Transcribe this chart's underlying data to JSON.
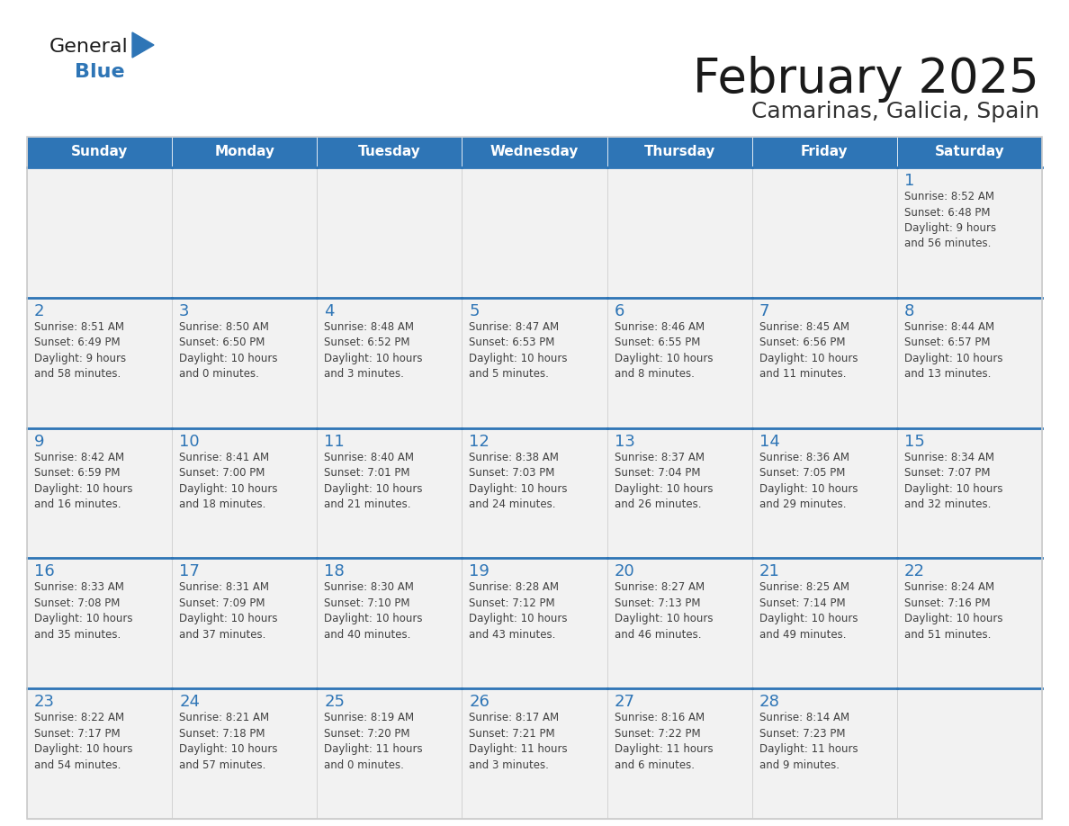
{
  "title": "February 2025",
  "subtitle": "Camarinas, Galicia, Spain",
  "days_of_week": [
    "Sunday",
    "Monday",
    "Tuesday",
    "Wednesday",
    "Thursday",
    "Friday",
    "Saturday"
  ],
  "header_bg": "#2E75B6",
  "header_text": "#FFFFFF",
  "cell_bg": "#F2F2F2",
  "cell_border_color": "#CCCCCC",
  "row_top_border_color": "#2E75B6",
  "day_num_color": "#2E75B6",
  "info_text_color": "#404040",
  "title_color": "#1a1a1a",
  "subtitle_color": "#333333",
  "logo_general_color": "#1a1a1a",
  "logo_blue_color": "#2E75B6",
  "weeks": [
    [
      {
        "day": null,
        "info": null
      },
      {
        "day": null,
        "info": null
      },
      {
        "day": null,
        "info": null
      },
      {
        "day": null,
        "info": null
      },
      {
        "day": null,
        "info": null
      },
      {
        "day": null,
        "info": null
      },
      {
        "day": 1,
        "info": "Sunrise: 8:52 AM\nSunset: 6:48 PM\nDaylight: 9 hours\nand 56 minutes."
      }
    ],
    [
      {
        "day": 2,
        "info": "Sunrise: 8:51 AM\nSunset: 6:49 PM\nDaylight: 9 hours\nand 58 minutes."
      },
      {
        "day": 3,
        "info": "Sunrise: 8:50 AM\nSunset: 6:50 PM\nDaylight: 10 hours\nand 0 minutes."
      },
      {
        "day": 4,
        "info": "Sunrise: 8:48 AM\nSunset: 6:52 PM\nDaylight: 10 hours\nand 3 minutes."
      },
      {
        "day": 5,
        "info": "Sunrise: 8:47 AM\nSunset: 6:53 PM\nDaylight: 10 hours\nand 5 minutes."
      },
      {
        "day": 6,
        "info": "Sunrise: 8:46 AM\nSunset: 6:55 PM\nDaylight: 10 hours\nand 8 minutes."
      },
      {
        "day": 7,
        "info": "Sunrise: 8:45 AM\nSunset: 6:56 PM\nDaylight: 10 hours\nand 11 minutes."
      },
      {
        "day": 8,
        "info": "Sunrise: 8:44 AM\nSunset: 6:57 PM\nDaylight: 10 hours\nand 13 minutes."
      }
    ],
    [
      {
        "day": 9,
        "info": "Sunrise: 8:42 AM\nSunset: 6:59 PM\nDaylight: 10 hours\nand 16 minutes."
      },
      {
        "day": 10,
        "info": "Sunrise: 8:41 AM\nSunset: 7:00 PM\nDaylight: 10 hours\nand 18 minutes."
      },
      {
        "day": 11,
        "info": "Sunrise: 8:40 AM\nSunset: 7:01 PM\nDaylight: 10 hours\nand 21 minutes."
      },
      {
        "day": 12,
        "info": "Sunrise: 8:38 AM\nSunset: 7:03 PM\nDaylight: 10 hours\nand 24 minutes."
      },
      {
        "day": 13,
        "info": "Sunrise: 8:37 AM\nSunset: 7:04 PM\nDaylight: 10 hours\nand 26 minutes."
      },
      {
        "day": 14,
        "info": "Sunrise: 8:36 AM\nSunset: 7:05 PM\nDaylight: 10 hours\nand 29 minutes."
      },
      {
        "day": 15,
        "info": "Sunrise: 8:34 AM\nSunset: 7:07 PM\nDaylight: 10 hours\nand 32 minutes."
      }
    ],
    [
      {
        "day": 16,
        "info": "Sunrise: 8:33 AM\nSunset: 7:08 PM\nDaylight: 10 hours\nand 35 minutes."
      },
      {
        "day": 17,
        "info": "Sunrise: 8:31 AM\nSunset: 7:09 PM\nDaylight: 10 hours\nand 37 minutes."
      },
      {
        "day": 18,
        "info": "Sunrise: 8:30 AM\nSunset: 7:10 PM\nDaylight: 10 hours\nand 40 minutes."
      },
      {
        "day": 19,
        "info": "Sunrise: 8:28 AM\nSunset: 7:12 PM\nDaylight: 10 hours\nand 43 minutes."
      },
      {
        "day": 20,
        "info": "Sunrise: 8:27 AM\nSunset: 7:13 PM\nDaylight: 10 hours\nand 46 minutes."
      },
      {
        "day": 21,
        "info": "Sunrise: 8:25 AM\nSunset: 7:14 PM\nDaylight: 10 hours\nand 49 minutes."
      },
      {
        "day": 22,
        "info": "Sunrise: 8:24 AM\nSunset: 7:16 PM\nDaylight: 10 hours\nand 51 minutes."
      }
    ],
    [
      {
        "day": 23,
        "info": "Sunrise: 8:22 AM\nSunset: 7:17 PM\nDaylight: 10 hours\nand 54 minutes."
      },
      {
        "day": 24,
        "info": "Sunrise: 8:21 AM\nSunset: 7:18 PM\nDaylight: 10 hours\nand 57 minutes."
      },
      {
        "day": 25,
        "info": "Sunrise: 8:19 AM\nSunset: 7:20 PM\nDaylight: 11 hours\nand 0 minutes."
      },
      {
        "day": 26,
        "info": "Sunrise: 8:17 AM\nSunset: 7:21 PM\nDaylight: 11 hours\nand 3 minutes."
      },
      {
        "day": 27,
        "info": "Sunrise: 8:16 AM\nSunset: 7:22 PM\nDaylight: 11 hours\nand 6 minutes."
      },
      {
        "day": 28,
        "info": "Sunrise: 8:14 AM\nSunset: 7:23 PM\nDaylight: 11 hours\nand 9 minutes."
      },
      {
        "day": null,
        "info": null
      }
    ]
  ]
}
